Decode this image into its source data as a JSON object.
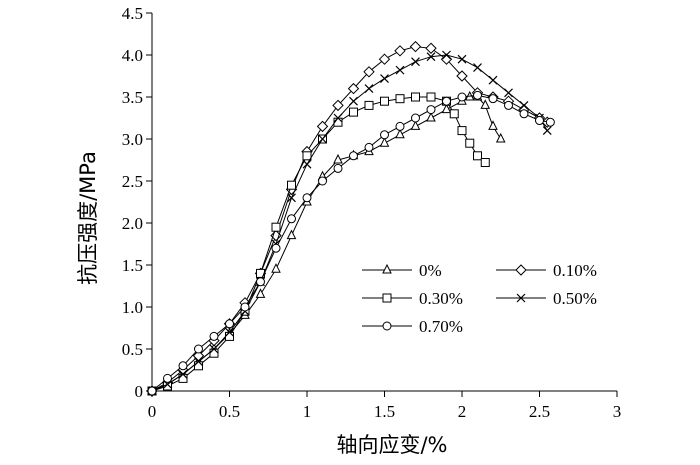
{
  "chart_data": {
    "type": "line",
    "xlabel": "轴向应变/%",
    "ylabel": "抗压强度/MPa",
    "xlim": [
      0,
      3
    ],
    "ylim": [
      0,
      4.5
    ],
    "x_ticks": [
      0,
      0.5,
      1,
      1.5,
      2,
      2.5,
      3
    ],
    "x_tick_labels": [
      "0",
      "0.5",
      "1",
      "1.5",
      "2",
      "2.5",
      "3"
    ],
    "y_ticks": [
      0,
      0.5,
      1,
      1.5,
      2,
      2.5,
      3,
      3.5,
      4,
      4.5
    ],
    "y_tick_labels": [
      "0",
      "0.5",
      "1.0",
      "1.5",
      "2.0",
      "2.5",
      "3.0",
      "3.5",
      "4.0",
      "4.5"
    ],
    "grid": false,
    "legend_position": "lower-right",
    "series": [
      {
        "name": "0%",
        "marker": "triangle",
        "points": [
          [
            0,
            0
          ],
          [
            0.1,
            0.08
          ],
          [
            0.2,
            0.2
          ],
          [
            0.3,
            0.35
          ],
          [
            0.4,
            0.5
          ],
          [
            0.5,
            0.68
          ],
          [
            0.6,
            0.9
          ],
          [
            0.7,
            1.15
          ],
          [
            0.8,
            1.45
          ],
          [
            0.9,
            1.85
          ],
          [
            1.0,
            2.25
          ],
          [
            1.1,
            2.55
          ],
          [
            1.2,
            2.75
          ],
          [
            1.3,
            2.8
          ],
          [
            1.4,
            2.85
          ],
          [
            1.5,
            2.95
          ],
          [
            1.6,
            3.05
          ],
          [
            1.7,
            3.15
          ],
          [
            1.8,
            3.25
          ],
          [
            1.9,
            3.35
          ],
          [
            2.0,
            3.45
          ],
          [
            2.05,
            3.5
          ],
          [
            2.1,
            3.5
          ],
          [
            2.15,
            3.4
          ],
          [
            2.2,
            3.15
          ],
          [
            2.25,
            3.0
          ]
        ]
      },
      {
        "name": "0.10%",
        "marker": "diamond",
        "points": [
          [
            0,
            0
          ],
          [
            0.1,
            0.1
          ],
          [
            0.2,
            0.25
          ],
          [
            0.3,
            0.42
          ],
          [
            0.4,
            0.6
          ],
          [
            0.5,
            0.8
          ],
          [
            0.6,
            1.05
          ],
          [
            0.7,
            1.4
          ],
          [
            0.8,
            1.85
          ],
          [
            0.9,
            2.4
          ],
          [
            1.0,
            2.85
          ],
          [
            1.1,
            3.15
          ],
          [
            1.2,
            3.4
          ],
          [
            1.3,
            3.6
          ],
          [
            1.4,
            3.8
          ],
          [
            1.5,
            3.95
          ],
          [
            1.6,
            4.05
          ],
          [
            1.7,
            4.1
          ],
          [
            1.8,
            4.08
          ],
          [
            1.9,
            3.95
          ],
          [
            2.0,
            3.75
          ],
          [
            2.1,
            3.55
          ],
          [
            2.2,
            3.5
          ],
          [
            2.3,
            3.45
          ],
          [
            2.4,
            3.35
          ],
          [
            2.5,
            3.25
          ],
          [
            2.55,
            3.2
          ]
        ]
      },
      {
        "name": "0.30%",
        "marker": "square",
        "points": [
          [
            0,
            0
          ],
          [
            0.1,
            0.06
          ],
          [
            0.2,
            0.15
          ],
          [
            0.3,
            0.3
          ],
          [
            0.4,
            0.45
          ],
          [
            0.5,
            0.65
          ],
          [
            0.6,
            0.95
          ],
          [
            0.7,
            1.4
          ],
          [
            0.8,
            1.95
          ],
          [
            0.9,
            2.45
          ],
          [
            1.0,
            2.8
          ],
          [
            1.1,
            3.0
          ],
          [
            1.2,
            3.2
          ],
          [
            1.3,
            3.32
          ],
          [
            1.4,
            3.4
          ],
          [
            1.5,
            3.45
          ],
          [
            1.6,
            3.48
          ],
          [
            1.7,
            3.5
          ],
          [
            1.8,
            3.5
          ],
          [
            1.9,
            3.45
          ],
          [
            1.95,
            3.3
          ],
          [
            2.0,
            3.1
          ],
          [
            2.05,
            2.95
          ],
          [
            2.1,
            2.8
          ],
          [
            2.15,
            2.72
          ]
        ]
      },
      {
        "name": "0.50%",
        "marker": "cross",
        "points": [
          [
            0,
            0
          ],
          [
            0.1,
            0.08
          ],
          [
            0.2,
            0.2
          ],
          [
            0.3,
            0.35
          ],
          [
            0.4,
            0.5
          ],
          [
            0.5,
            0.7
          ],
          [
            0.6,
            0.95
          ],
          [
            0.7,
            1.3
          ],
          [
            0.8,
            1.75
          ],
          [
            0.9,
            2.3
          ],
          [
            1.0,
            2.7
          ],
          [
            1.1,
            3.0
          ],
          [
            1.2,
            3.25
          ],
          [
            1.3,
            3.45
          ],
          [
            1.4,
            3.6
          ],
          [
            1.5,
            3.72
          ],
          [
            1.6,
            3.82
          ],
          [
            1.7,
            3.92
          ],
          [
            1.8,
            3.98
          ],
          [
            1.9,
            4.0
          ],
          [
            2.0,
            3.95
          ],
          [
            2.1,
            3.85
          ],
          [
            2.2,
            3.7
          ],
          [
            2.3,
            3.55
          ],
          [
            2.4,
            3.4
          ],
          [
            2.5,
            3.25
          ],
          [
            2.55,
            3.1
          ]
        ]
      },
      {
        "name": "0.70%",
        "marker": "circle",
        "points": [
          [
            0,
            0
          ],
          [
            0.1,
            0.15
          ],
          [
            0.2,
            0.3
          ],
          [
            0.3,
            0.5
          ],
          [
            0.4,
            0.65
          ],
          [
            0.5,
            0.8
          ],
          [
            0.6,
            1.0
          ],
          [
            0.7,
            1.3
          ],
          [
            0.8,
            1.7
          ],
          [
            0.9,
            2.05
          ],
          [
            1.0,
            2.3
          ],
          [
            1.1,
            2.5
          ],
          [
            1.2,
            2.65
          ],
          [
            1.3,
            2.8
          ],
          [
            1.4,
            2.9
          ],
          [
            1.5,
            3.05
          ],
          [
            1.6,
            3.15
          ],
          [
            1.7,
            3.25
          ],
          [
            1.8,
            3.35
          ],
          [
            1.9,
            3.45
          ],
          [
            2.0,
            3.5
          ],
          [
            2.1,
            3.52
          ],
          [
            2.2,
            3.48
          ],
          [
            2.3,
            3.4
          ],
          [
            2.4,
            3.3
          ],
          [
            2.5,
            3.22
          ],
          [
            2.57,
            3.2
          ]
        ]
      }
    ]
  }
}
